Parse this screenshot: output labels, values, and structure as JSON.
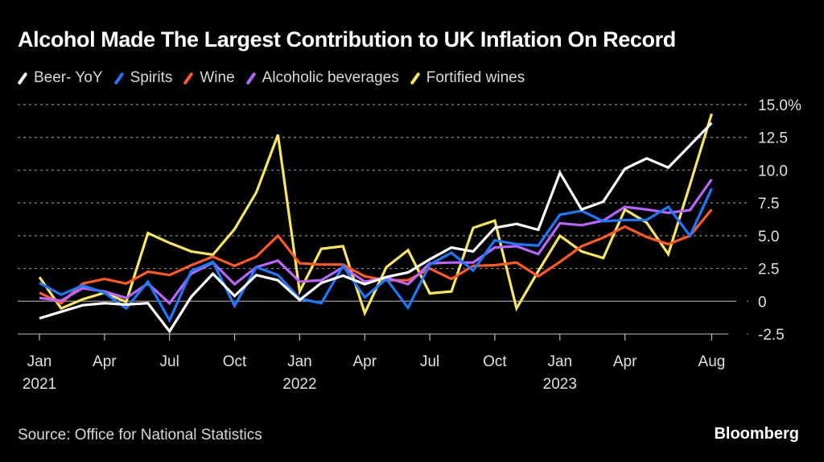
{
  "chart_data": {
    "type": "line",
    "title": "Alcohol Made The Largest Contribution to UK Inflation On Record",
    "xlabel": "",
    "ylabel": "",
    "ylim": [
      -2.5,
      15.0
    ],
    "y_ticks": [
      15.0,
      12.5,
      10.0,
      7.5,
      5.0,
      2.5,
      0,
      -2.5
    ],
    "y_tick_labels": [
      "15.0%",
      "12.5",
      "10.0",
      "7.5",
      "5.0",
      "2.5",
      "0",
      "-2.5"
    ],
    "y_axis_side": "right",
    "grid": true,
    "legend_position": "top-left",
    "x": [
      "2021-01",
      "2021-02",
      "2021-03",
      "2021-04",
      "2021-05",
      "2021-06",
      "2021-07",
      "2021-08",
      "2021-09",
      "2021-10",
      "2021-11",
      "2021-12",
      "2022-01",
      "2022-02",
      "2022-03",
      "2022-04",
      "2022-05",
      "2022-06",
      "2022-07",
      "2022-08",
      "2022-09",
      "2022-10",
      "2022-11",
      "2022-12",
      "2023-01",
      "2023-02",
      "2023-03",
      "2023-04",
      "2023-05",
      "2023-06",
      "2023-07",
      "2023-08"
    ],
    "x_ticks": [
      {
        "index": 0,
        "label": "Jan",
        "sublabel": "2021"
      },
      {
        "index": 3,
        "label": "Apr",
        "sublabel": ""
      },
      {
        "index": 6,
        "label": "Jul",
        "sublabel": ""
      },
      {
        "index": 9,
        "label": "Oct",
        "sublabel": ""
      },
      {
        "index": 12,
        "label": "Jan",
        "sublabel": "2022"
      },
      {
        "index": 15,
        "label": "Apr",
        "sublabel": ""
      },
      {
        "index": 18,
        "label": "Jul",
        "sublabel": ""
      },
      {
        "index": 21,
        "label": "Oct",
        "sublabel": ""
      },
      {
        "index": 24,
        "label": "Jan",
        "sublabel": "2023"
      },
      {
        "index": 27,
        "label": "Apr",
        "sublabel": ""
      },
      {
        "index": 31,
        "label": "Aug",
        "sublabel": ""
      }
    ],
    "series": [
      {
        "name": "Fortified wines",
        "color": "#f7e463",
        "values": [
          1.85,
          -0.55,
          0.15,
          0.65,
          -0.05,
          5.2,
          4.45,
          3.8,
          3.55,
          5.5,
          8.3,
          12.7,
          0.75,
          4.0,
          4.2,
          -0.9,
          2.6,
          3.9,
          0.6,
          0.75,
          5.6,
          6.15,
          -0.55,
          2.3,
          5.0,
          3.8,
          3.3,
          7.0,
          6.0,
          3.6,
          8.9,
          14.3
        ]
      },
      {
        "name": "Wine",
        "color": "#ff5a2a",
        "values": [
          0.65,
          -0.15,
          1.35,
          1.7,
          1.35,
          2.25,
          2.0,
          2.75,
          3.4,
          2.7,
          3.4,
          5.0,
          2.9,
          2.8,
          2.8,
          1.9,
          1.6,
          1.6,
          2.5,
          1.7,
          2.7,
          2.75,
          2.95,
          1.9,
          3.0,
          4.2,
          4.85,
          5.7,
          4.9,
          4.35,
          5.0,
          7.0
        ]
      },
      {
        "name": "Alcoholic beverages",
        "color": "#b866ff",
        "values": [
          0.25,
          0.05,
          1.0,
          0.75,
          0.25,
          1.35,
          -0.15,
          2.1,
          2.95,
          1.3,
          2.6,
          3.1,
          1.5,
          1.6,
          2.6,
          1.5,
          1.8,
          1.3,
          2.9,
          2.95,
          2.95,
          4.1,
          4.2,
          3.6,
          5.95,
          5.8,
          6.15,
          7.2,
          7.0,
          6.75,
          6.95,
          9.3
        ]
      },
      {
        "name": "Spirits",
        "color": "#1f78ff",
        "values": [
          1.4,
          0.5,
          1.2,
          0.65,
          -0.55,
          1.5,
          -1.45,
          2.3,
          3.0,
          -0.35,
          2.6,
          2.0,
          0.2,
          -0.15,
          2.7,
          0.3,
          1.7,
          -0.5,
          2.8,
          3.7,
          2.35,
          4.65,
          4.35,
          4.25,
          6.6,
          6.9,
          6.1,
          6.2,
          6.2,
          7.2,
          5.0,
          8.6
        ]
      },
      {
        "name": "Beer- YoY",
        "color": "#ffffff",
        "values": [
          -1.3,
          -0.8,
          -0.3,
          -0.15,
          -0.25,
          -0.15,
          -2.3,
          0.35,
          2.1,
          0.4,
          2.0,
          1.6,
          0.1,
          1.4,
          1.95,
          1.3,
          1.85,
          2.2,
          3.2,
          4.1,
          3.8,
          5.6,
          5.9,
          5.45,
          9.8,
          7.0,
          7.6,
          10.1,
          10.9,
          10.2,
          11.9,
          13.6
        ]
      }
    ]
  },
  "legend": [
    {
      "label": "Beer- YoY",
      "color": "#ffffff"
    },
    {
      "label": "Spirits",
      "color": "#1f78ff"
    },
    {
      "label": "Wine",
      "color": "#ff5a2a"
    },
    {
      "label": "Alcoholic beverages",
      "color": "#b866ff"
    },
    {
      "label": "Fortified wines",
      "color": "#f7e463"
    }
  ],
  "footer": {
    "source": "Source: Office for National Statistics",
    "brand": "Bloomberg"
  }
}
